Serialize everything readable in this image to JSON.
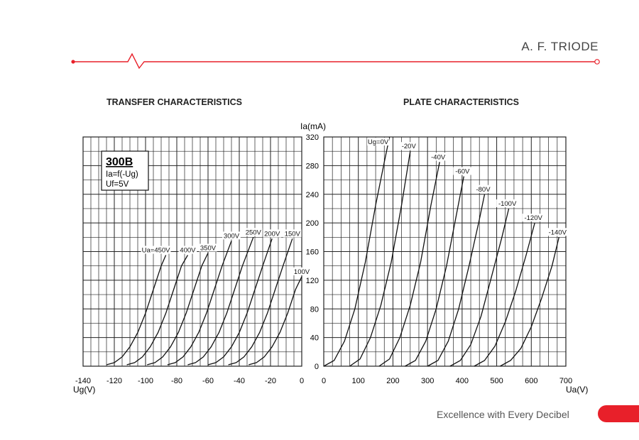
{
  "header": {
    "brand": "A. F. TRIODE"
  },
  "footer": {
    "tagline": "Excellence with Every Decibel"
  },
  "colors": {
    "accent": "#e8202a",
    "grid": "#222222",
    "curve": "#111111"
  },
  "chart_data": [
    {
      "type": "line",
      "title": "TRANSFER CHARACTERISTICS",
      "xlabel": "Ug(V)",
      "ylabel": "Ia(mA)",
      "xlim": [
        -140,
        0
      ],
      "ylim": [
        0,
        320
      ],
      "x_ticks": [
        "-140",
        "-120",
        "-100",
        "-80",
        "-60",
        "-40",
        "-20",
        "0"
      ],
      "y_ticks": [
        "0",
        "40",
        "80",
        "120",
        "160",
        "200",
        "240",
        "280",
        "320"
      ],
      "grid": true,
      "legend_box": {
        "tube": "300B",
        "line1": "Ia=f(-Ug)",
        "line2": "Uf=5V"
      },
      "series": [
        {
          "name": "Ua=450V",
          "x": [
            -125,
            -120,
            -115,
            -110,
            -105,
            -100,
            -95,
            -90,
            -87
          ],
          "y": [
            2,
            5,
            13,
            27,
            47,
            74,
            107,
            140,
            155
          ]
        },
        {
          "name": "400V",
          "x": [
            -112,
            -107,
            -102,
            -97,
            -92,
            -87,
            -82,
            -77,
            -73
          ],
          "y": [
            2,
            5,
            13,
            27,
            47,
            74,
            107,
            140,
            155
          ]
        },
        {
          "name": "350V",
          "x": [
            -99,
            -94,
            -89,
            -84,
            -79,
            -74,
            -69,
            -64,
            -60
          ],
          "y": [
            2,
            5,
            13,
            27,
            47,
            74,
            107,
            140,
            158
          ]
        },
        {
          "name": "300V",
          "x": [
            -86,
            -81,
            -76,
            -71,
            -66,
            -61,
            -56,
            -51,
            -45
          ],
          "y": [
            2,
            5,
            13,
            27,
            47,
            74,
            107,
            140,
            175
          ]
        },
        {
          "name": "250V",
          "x": [
            -73,
            -68,
            -63,
            -58,
            -53,
            -48,
            -43,
            -38,
            -31
          ],
          "y": [
            2,
            5,
            13,
            27,
            47,
            74,
            107,
            140,
            180
          ]
        },
        {
          "name": "200V",
          "x": [
            -60,
            -55,
            -50,
            -45,
            -40,
            -35,
            -30,
            -25,
            -19
          ],
          "y": [
            2,
            5,
            13,
            27,
            47,
            74,
            107,
            140,
            178
          ]
        },
        {
          "name": "150V",
          "x": [
            -47,
            -42,
            -37,
            -32,
            -27,
            -22,
            -17,
            -12,
            -6
          ],
          "y": [
            2,
            5,
            13,
            27,
            47,
            74,
            107,
            140,
            178
          ]
        },
        {
          "name": "100V",
          "x": [
            -34,
            -29,
            -24,
            -19,
            -14,
            -9,
            -4,
            0
          ],
          "y": [
            2,
            5,
            13,
            27,
            47,
            74,
            107,
            125
          ]
        }
      ]
    },
    {
      "type": "line",
      "title": "PLATE CHARACTERISTICS",
      "xlabel": "Ua(V)",
      "ylabel": "Ia(mA)",
      "xlim": [
        0,
        700
      ],
      "ylim": [
        0,
        320
      ],
      "x_ticks": [
        "0",
        "100",
        "200",
        "300",
        "400",
        "500",
        "600",
        "700"
      ],
      "y_ticks": [
        "0",
        "40",
        "80",
        "120",
        "160",
        "200",
        "240",
        "280",
        "320"
      ],
      "grid": true,
      "series": [
        {
          "name": "Ug=0V",
          "x": [
            0,
            30,
            60,
            90,
            120,
            150,
            175,
            190
          ],
          "y": [
            0,
            8,
            35,
            80,
            145,
            225,
            285,
            320
          ]
        },
        {
          "name": "-20V",
          "x": [
            75,
            105,
            135,
            165,
            195,
            225,
            250
          ],
          "y": [
            0,
            10,
            40,
            85,
            145,
            225,
            300
          ]
        },
        {
          "name": "-40V",
          "x": [
            160,
            190,
            220,
            250,
            280,
            310,
            335
          ],
          "y": [
            0,
            10,
            40,
            85,
            145,
            225,
            285
          ]
        },
        {
          "name": "-60V",
          "x": [
            235,
            265,
            295,
            325,
            355,
            385,
            405
          ],
          "y": [
            0,
            8,
            35,
            80,
            140,
            215,
            265
          ]
        },
        {
          "name": "-80V",
          "x": [
            300,
            330,
            360,
            390,
            420,
            450,
            465
          ],
          "y": [
            0,
            8,
            35,
            80,
            140,
            205,
            240
          ]
        },
        {
          "name": "-100V",
          "x": [
            365,
            395,
            425,
            455,
            485,
            515,
            535
          ],
          "y": [
            0,
            8,
            30,
            70,
            125,
            180,
            220
          ]
        },
        {
          "name": "-120V",
          "x": [
            435,
            465,
            495,
            525,
            555,
            585,
            610
          ],
          "y": [
            0,
            8,
            28,
            62,
            105,
            155,
            200
          ]
        },
        {
          "name": "-140V",
          "x": [
            510,
            540,
            570,
            600,
            630,
            660,
            680
          ],
          "y": [
            0,
            8,
            25,
            55,
            95,
            140,
            180
          ]
        }
      ]
    }
  ]
}
